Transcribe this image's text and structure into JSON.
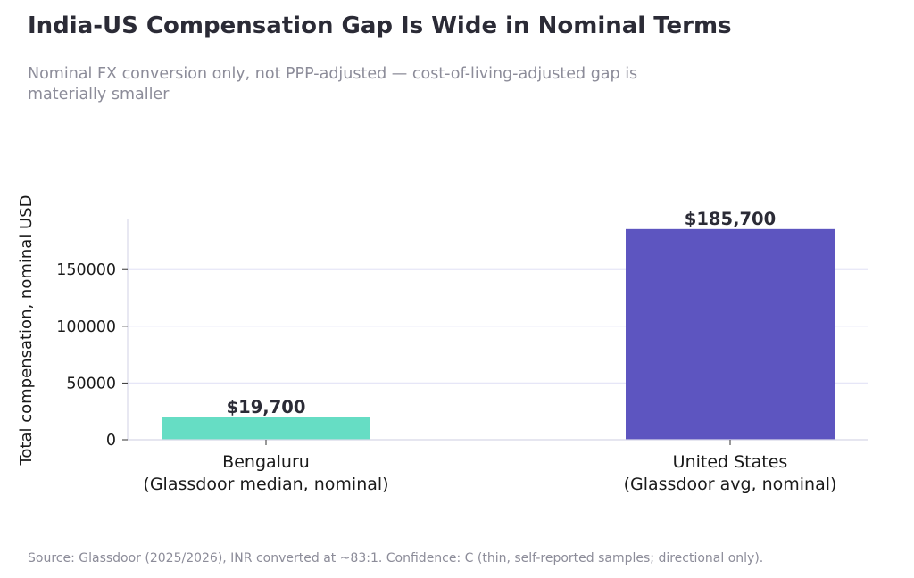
{
  "header": {
    "title": "India-US Compensation Gap Is Wide in Nominal Terms",
    "subtitle": "Nominal FX conversion only, not PPP-adjusted — cost-of-living-adjusted gap is materially smaller"
  },
  "footer": {
    "source": "Source: Glassdoor (2025/2026), INR converted at ~83:1. Confidence: C (thin, self-reported samples; directional only)."
  },
  "chart_data": {
    "type": "bar",
    "title": "India-US Compensation Gap Is Wide in Nominal Terms",
    "ylabel": "Total compensation, nominal USD",
    "xlabel": "",
    "ylim": [
      0,
      195000
    ],
    "yticks": [
      0,
      50000,
      100000,
      150000
    ],
    "ytick_labels": [
      "0",
      "50000",
      "100000",
      "150000"
    ],
    "grid": true,
    "categories": [
      [
        "Bengaluru",
        "(Glassdoor median, nominal)"
      ],
      [
        "United States",
        "(Glassdoor avg, nominal)"
      ]
    ],
    "values": [
      19700,
      185700
    ],
    "data_labels": [
      "$19,700",
      "$185,700"
    ],
    "colors": [
      "#66ddc4",
      "#5d55c0"
    ],
    "grid_color": "#e6e6f7",
    "axis_color": "#d8d8e8"
  }
}
